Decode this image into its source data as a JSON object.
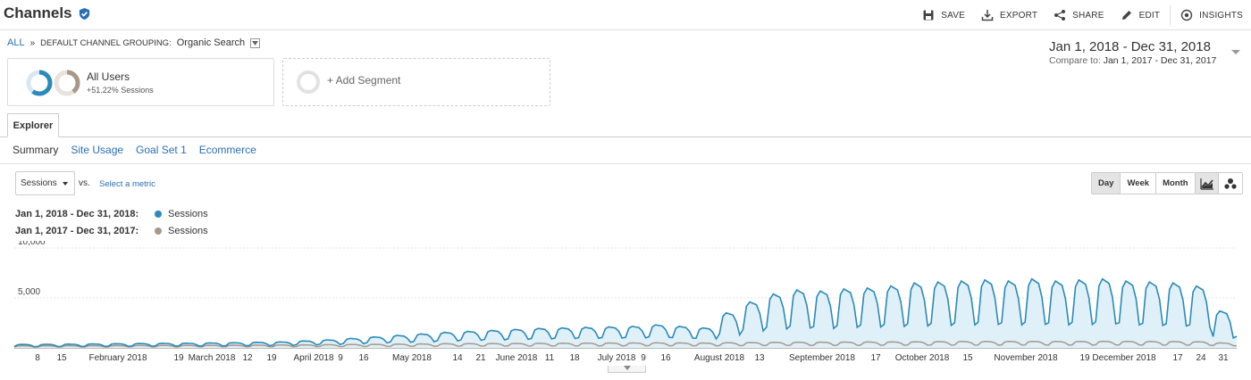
{
  "header": {
    "title": "Channels",
    "actions": {
      "save": "SAVE",
      "export": "EXPORT",
      "share": "SHARE",
      "edit": "EDIT",
      "insights": "INSIGHTS"
    }
  },
  "breadcrumb": {
    "all": "ALL",
    "separator": "»",
    "grouping_label": "DEFAULT CHANNEL GROUPING:",
    "grouping_value": "Organic Search"
  },
  "date_range": {
    "main": "Jan 1, 2018 - Dec 31, 2018",
    "compare_label": "Compare to:",
    "compare_value": "Jan 1, 2017 - Dec 31, 2017"
  },
  "segments": {
    "active": {
      "name": "All Users",
      "detail": "+51.22% Sessions",
      "current_share": 0.6
    },
    "add_label": "+ Add Segment"
  },
  "tabs": {
    "explorer": "Explorer"
  },
  "subtabs": [
    "Summary",
    "Site Usage",
    "Goal Set 1",
    "Ecommerce"
  ],
  "metric": {
    "selected": "Sessions",
    "vs_label": "vs.",
    "select_link": "Select a metric"
  },
  "granularity": [
    "Day",
    "Week",
    "Month"
  ],
  "legend": [
    {
      "range": "Jan 1, 2018 - Dec 31, 2018:",
      "series": "Sessions",
      "color": "#2a8ab8"
    },
    {
      "range": "Jan 1, 2017 - Dec 31, 2017:",
      "series": "Sessions",
      "color": "#a89888"
    }
  ],
  "colors": {
    "accent": "#2a6fb5",
    "series_current": "#2a8ab8",
    "series_current_fill": "#dff0f9",
    "series_previous": "#a89888"
  },
  "chart_data": {
    "type": "area",
    "y_ticks": [
      "10,000",
      "5,000"
    ],
    "ylim": [
      0,
      10000
    ],
    "x_labels": [
      "8",
      "15",
      "February 2018",
      "19",
      "March 2018",
      "12",
      "19",
      "April 2018",
      "9",
      "16",
      "May 2018",
      "14",
      "21",
      "June 2018",
      "11",
      "18",
      "July 2018",
      "9",
      "16",
      "August 2018",
      "13",
      "September 2018",
      "17",
      "October 2018",
      "15",
      "November 2018",
      "19",
      "December 2018",
      "17",
      "24",
      "31"
    ],
    "series": [
      {
        "name": "Sessions",
        "weekly_peaks": [
          350,
          360,
          380,
          400,
          420,
          440,
          460,
          470,
          500,
          520,
          560,
          600,
          700,
          800,
          950,
          1100,
          1250,
          1400,
          1550,
          1650,
          1750,
          1850,
          1950,
          2000,
          2050,
          2100,
          2150,
          2300,
          2150,
          2000,
          3500,
          4600,
          5400,
          5800,
          5700,
          5900,
          6000,
          6200,
          6500,
          6600,
          6700,
          6800,
          6700,
          6900,
          6700,
          6800,
          6900,
          6700,
          6600,
          6500,
          6200,
          3700,
          2200
        ],
        "weekly_troughs": [
          120,
          130,
          140,
          150,
          160,
          170,
          180,
          190,
          200,
          210,
          230,
          260,
          300,
          350,
          420,
          500,
          560,
          620,
          700,
          760,
          800,
          860,
          900,
          940,
          960,
          980,
          1000,
          1050,
          980,
          900,
          1300,
          1700,
          1900,
          2000,
          1950,
          2050,
          2100,
          2150,
          2200,
          2250,
          2300,
          2350,
          2300,
          2350,
          2300,
          2350,
          2400,
          2300,
          2250,
          2200,
          2100,
          1000,
          1100
        ]
      },
      {
        "name": "Sessions",
        "weekly_peaks": [
          200,
          210,
          220,
          220,
          230,
          240,
          250,
          250,
          260,
          270,
          280,
          290,
          300,
          320,
          340,
          360,
          380,
          400,
          420,
          430,
          440,
          450,
          460,
          470,
          480,
          490,
          500,
          510,
          500,
          490,
          520,
          540,
          560,
          570,
          580,
          590,
          600,
          610,
          620,
          630,
          640,
          640,
          650,
          650,
          640,
          650,
          660,
          650,
          640,
          630,
          620,
          500,
          400
        ],
        "weekly_troughs": [
          80,
          85,
          90,
          90,
          95,
          100,
          100,
          105,
          110,
          110,
          115,
          120,
          125,
          130,
          135,
          140,
          150,
          160,
          170,
          175,
          180,
          185,
          190,
          195,
          200,
          205,
          210,
          215,
          210,
          205,
          220,
          230,
          240,
          245,
          250,
          255,
          260,
          265,
          270,
          275,
          280,
          280,
          285,
          285,
          280,
          285,
          290,
          285,
          280,
          275,
          270,
          220,
          180
        ]
      }
    ]
  }
}
